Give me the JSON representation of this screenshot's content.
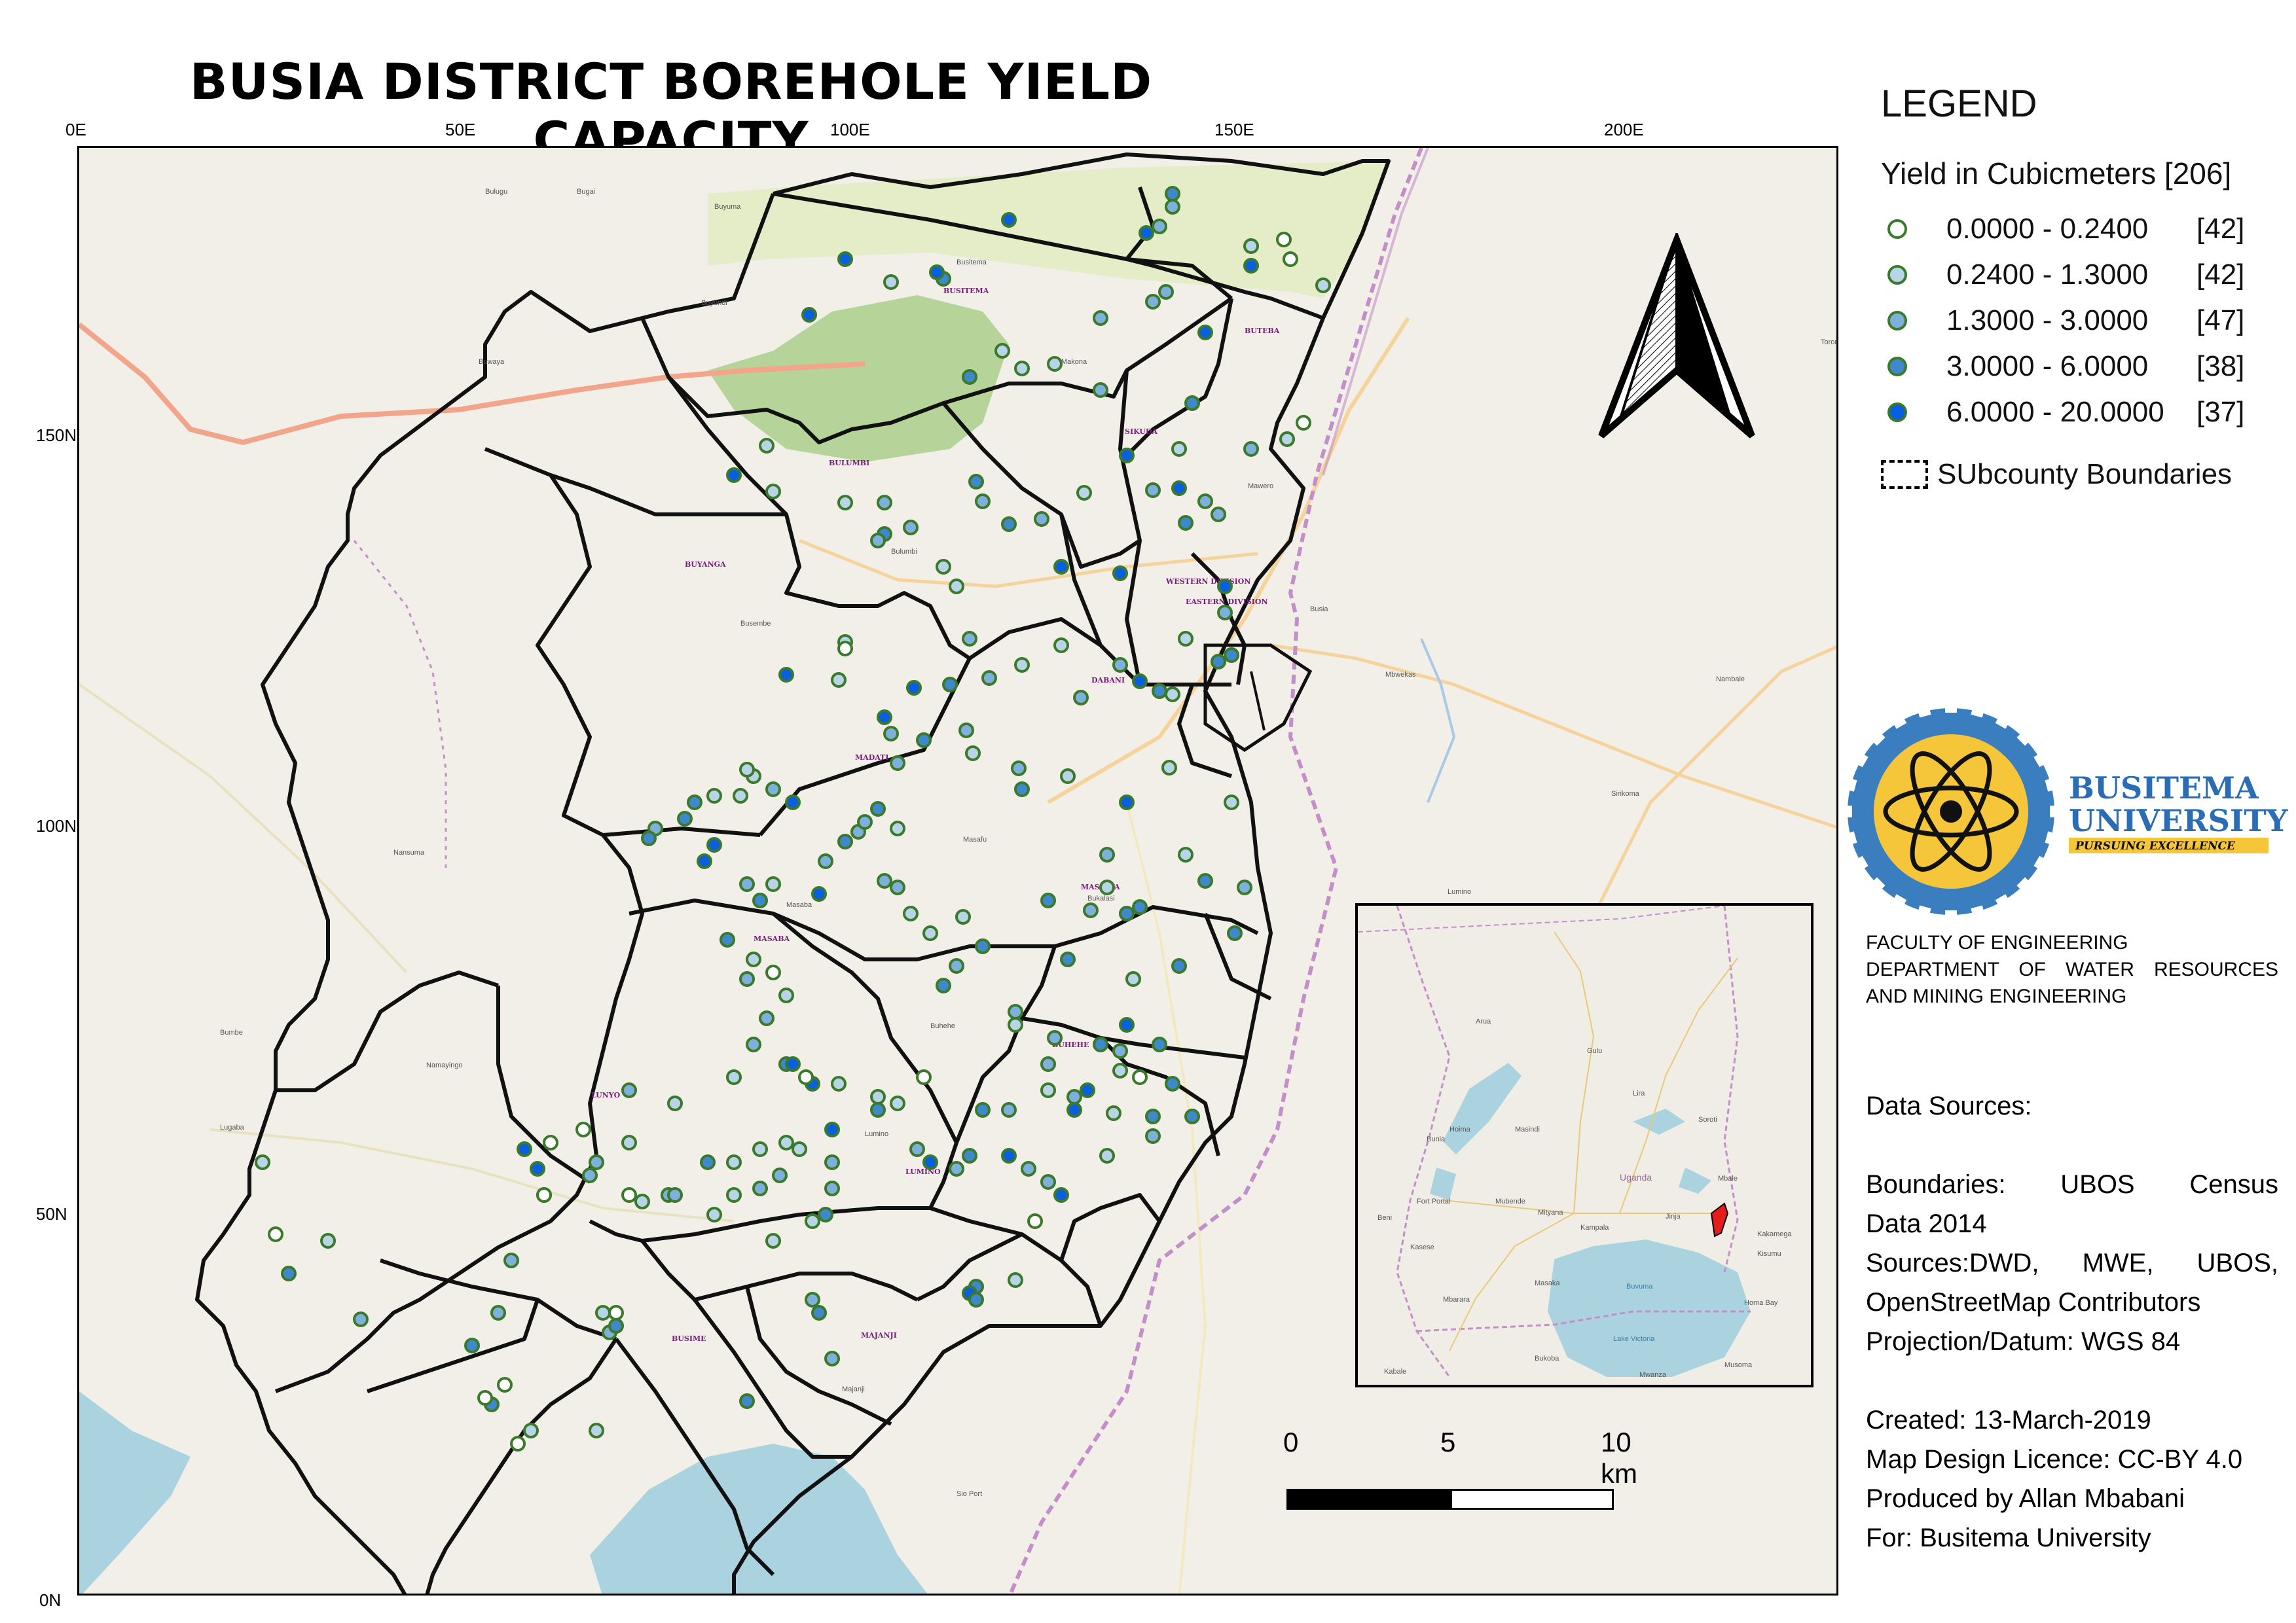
{
  "title": "BUSIA DISTRICT BOREHOLE YIELD CAPACITY",
  "grid": {
    "top": [
      "0E",
      "50E",
      "100E",
      "150E",
      "200E"
    ],
    "left": [
      "150N",
      "100N",
      "50N",
      "0N"
    ]
  },
  "legend": {
    "title": "LEGEND",
    "layer_title": "Yield in Cubicmeters [206]",
    "classes": [
      {
        "range": "0.0000 - 0.2400",
        "count": "[42]",
        "fill": "#ffffff"
      },
      {
        "range": "0.2400 - 1.3000",
        "count": "[42]",
        "fill": "#b8d5e8"
      },
      {
        "range": "1.3000 - 3.0000",
        "count": "[47]",
        "fill": "#7fb0dc"
      },
      {
        "range": "3.0000 - 6.0000",
        "count": "[38]",
        "fill": "#3f88cc"
      },
      {
        "range": "6.0000 - 20.0000",
        "count": "[37]",
        "fill": "#0a5ee0"
      }
    ],
    "boundary_label": "SUbcounty Boundaries",
    "stroke_color": "#3a7a2a"
  },
  "logo": {
    "name": "BUSITEMA",
    "name2": "UNIVERSITY",
    "motto": "PURSUING EXCELLENCE"
  },
  "faculty": [
    "FACULTY OF ENGINEERING",
    "DEPARTMENT OF WATER RESOURCES",
    "AND MINING ENGINEERING"
  ],
  "sources": {
    "heading": "Data Sources:",
    "lines": [
      "Boundaries: UBOS Census",
      "Data 2014",
      "Sources:DWD, MWE, UBOS,",
      "OpenStreetMap Contributors",
      "Projection/Datum: WGS 84"
    ],
    "created": "Created: 13-March-2019",
    "licence": "Map Design Licence: CC-BY 4.0",
    "produced": "Produced by Allan Mbabani",
    "for": "For: Busitema University"
  },
  "scale": {
    "labels": [
      "0",
      "5",
      "10 km"
    ]
  },
  "subcounties": [
    "BUSITEMA",
    "BUTEBA",
    "SIKUDA",
    "BULUMBI",
    "BUYANGA",
    "WESTERN DIVISION",
    "EASTERN DIVISION",
    "DABANI",
    "MADATI",
    "MASABA",
    "MASINYA",
    "BUHEHE",
    "LUNYO",
    "LUMINO",
    "BUSIME",
    "MAJANJI"
  ],
  "places": [
    "Busia",
    "Tororo",
    "Busembe",
    "Bukalasi",
    "Makona",
    "Buyundi",
    "Masafu",
    "Bulumbi",
    "Mawero",
    "Busitema",
    "Namayingo",
    "Masaba",
    "Buhehe",
    "Lumino",
    "Majanji",
    "Sio Port",
    "Mbwekas",
    "Nambale",
    "Sirikoma",
    "Lumino",
    "Lugaba",
    "Bumbe",
    "Buwaya",
    "Bulugu",
    "Bugai",
    "Buyuma",
    "Nansuma"
  ],
  "inset_places": [
    "Arua",
    "Gulu",
    "Lira",
    "Soroti",
    "Mbale",
    "Jinja",
    "Kampala",
    "Mityana",
    "Mubende",
    "Fort Portal",
    "Kasese",
    "Masaka",
    "Mbarara",
    "Bukoba",
    "Musoma",
    "Kisumu",
    "Kakamega",
    "Uganda",
    "Hoima",
    "Masindi",
    "Bunia",
    "Beni",
    "Kabale",
    "Mwanza",
    "Lake Victoria",
    "Buvuma",
    "Homa Bay"
  ]
}
